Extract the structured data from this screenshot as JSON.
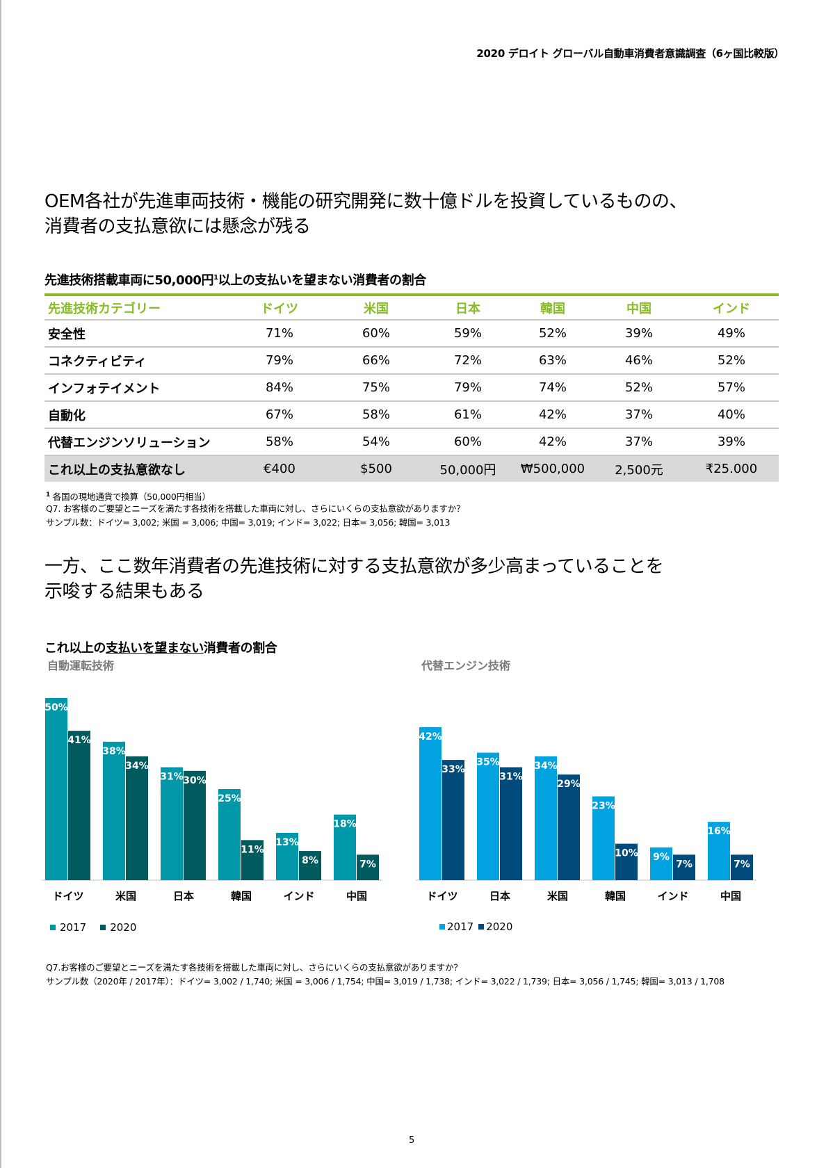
{
  "header": "2020 デロイト グローバル自動車消費者意識調査（6ヶ国比較版）",
  "heading1": [
    "OEM各社が先進車両技術・機能の研究開発に数十億ドルを投資しているものの、",
    "消費者の支払意欲には懸念が残る"
  ],
  "table": {
    "title": "先進技術搭載車両に50,000円",
    "title_sup": "1",
    "title_tail": "以上の支払いを望まない消費者の割合",
    "headers": [
      "先進技術カテゴリー",
      "ドイツ",
      "米国",
      "日本",
      "韓国",
      "中国",
      "インド"
    ],
    "rows": [
      [
        "安全性",
        "71%",
        "60%",
        "59%",
        "52%",
        "39%",
        "49%"
      ],
      [
        "コネクティビティ",
        "79%",
        "66%",
        "72%",
        "63%",
        "46%",
        "52%"
      ],
      [
        "インフォテイメント",
        "84%",
        "75%",
        "79%",
        "74%",
        "52%",
        "57%"
      ],
      [
        "自動化",
        "67%",
        "58%",
        "61%",
        "42%",
        "37%",
        "40%"
      ],
      [
        "代替エンジンソリューション",
        "58%",
        "54%",
        "60%",
        "42%",
        "37%",
        "39%"
      ],
      [
        "これ以上の支払意欲なし",
        "€400",
        "$500",
        "50,000円",
        "₩500,000",
        "2,500元",
        "₹25.000"
      ]
    ]
  },
  "notes1": {
    "sup": "1",
    "line1": " 各国の現地通貨で換算（50,000円相当）",
    "line2": "Q7. お客様のご要望とニーズを満たす各技術を搭載した車両に対し、さらにいくらの支払意欲がありますか？",
    "line3": "サンプル数：ドイツ= 3,002; 米国 = 3,006; 中国= 3,019; インド= 3,022; 日本= 3,056; 韓国= 3,013"
  },
  "heading2": [
    "一方、ここ数年消費者の先進技術に対する支払意欲が多少高まっていることを",
    "示唆する結果もある"
  ],
  "section2": {
    "pre": "これ以上の",
    "underlined": "支払いを望まない",
    "post": "消費者の割合"
  },
  "chart_data": [
    {
      "type": "bar",
      "title": "自動運転技術",
      "categories": [
        "ドイツ",
        "米国",
        "日本",
        "韓国",
        "インド",
        "中国"
      ],
      "series": [
        {
          "name": "2017",
          "values": [
            50,
            38,
            31,
            25,
            13,
            18
          ],
          "color": "#0097a9"
        },
        {
          "name": "2020",
          "values": [
            41,
            34,
            30,
            11,
            8,
            7
          ],
          "color": "#005a5e"
        }
      ],
      "labels": [
        [
          "50%",
          "38%",
          "31%",
          "25%",
          "13%",
          "18%"
        ],
        [
          "41%",
          "34%",
          "30%",
          "11%",
          "8%",
          "7%"
        ]
      ],
      "ylim": [
        0,
        50
      ],
      "grid": false,
      "legend": "bottom-left"
    },
    {
      "type": "bar",
      "title": "代替エンジン技術",
      "categories": [
        "ドイツ",
        "日本",
        "米国",
        "韓国",
        "インド",
        "中国"
      ],
      "series": [
        {
          "name": "2017",
          "values": [
            42,
            35,
            34,
            23,
            9,
            16
          ],
          "color": "#00a3e0"
        },
        {
          "name": "2020",
          "values": [
            33,
            31,
            29,
            10,
            7,
            7
          ],
          "color": "#004b7c"
        }
      ],
      "labels": [
        [
          "42%",
          "35%",
          "34%",
          "23%",
          "9%",
          "16%"
        ],
        [
          "33%",
          "31%",
          "29%",
          "10%",
          "7%",
          "7%"
        ]
      ],
      "ylim": [
        0,
        50
      ],
      "grid": false,
      "legend": "bottom-left"
    }
  ],
  "notes2": {
    "line1": "Q7.お客様のご要望とニーズを満たす各技術を搭載した車両に対し、さらにいくらの支払意欲がありますか？",
    "line2": "サンプル数（2020年 / 2017年）：ドイツ= 3,002 / 1,740; 米国 = 3,006 / 1,754; 中国= 3,019 / 1,738; インド= 3,022 / 1,739; 日本= 3,056 / 1,745; 韓国= 3,013 / 1,708"
  },
  "page_number": "5"
}
